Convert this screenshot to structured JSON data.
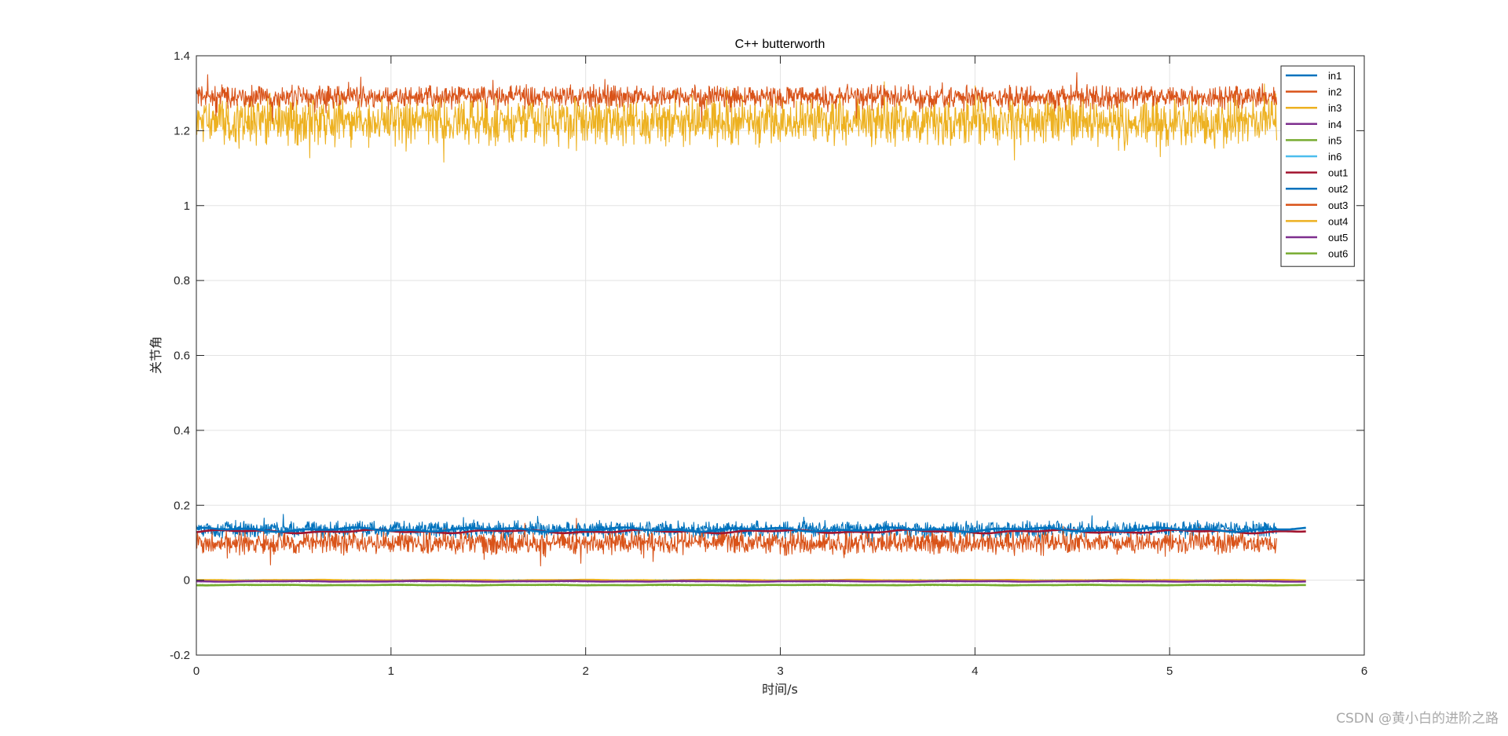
{
  "watermark": "CSDN @黄小白的进阶之路",
  "chart_data": {
    "type": "line",
    "title": "C++ butterworth",
    "xlabel": "时间/s",
    "ylabel": "关节角",
    "xlim": [
      0,
      6
    ],
    "ylim": [
      -0.2,
      1.4
    ],
    "xticks": [
      0,
      1,
      2,
      3,
      4,
      5,
      6
    ],
    "yticks": [
      -0.2,
      0,
      0.2,
      0.4,
      0.6,
      0.8,
      1,
      1.2,
      1.4
    ],
    "xtick_labels": [
      "0",
      "1",
      "2",
      "3",
      "4",
      "5",
      "6"
    ],
    "ytick_labels": [
      "-0.2",
      "0",
      "0.2",
      "0.4",
      "0.6",
      "0.8",
      "1",
      "1.2",
      "1.4"
    ],
    "grid": true,
    "legend_position": "top-right",
    "series": [
      {
        "name": "in1",
        "color": "#0072BD",
        "x_start": 0,
        "x_end": 5.55,
        "mean": 0.135,
        "noise_amp": 0.025,
        "kind": "noisy"
      },
      {
        "name": "in2",
        "color": "#D95319",
        "x_start": 0,
        "x_end": 5.55,
        "mean": 1.29,
        "noise_amp": 0.035,
        "kind": "noisy"
      },
      {
        "name": "in3",
        "color": "#EDB120",
        "x_start": 0,
        "x_end": 5.55,
        "mean": 1.225,
        "noise_amp": 0.075,
        "kind": "noisy"
      },
      {
        "name": "in4",
        "color": "#7E2F8E",
        "x_start": 0,
        "x_end": 5.55,
        "mean": -0.003,
        "noise_amp": 0.001,
        "kind": "noisy"
      },
      {
        "name": "in5",
        "color": "#77AC30",
        "x_start": 0,
        "x_end": 5.55,
        "mean": -0.013,
        "noise_amp": 0.001,
        "kind": "noisy"
      },
      {
        "name": "in6",
        "color": "#4DBEEE",
        "x_start": 0,
        "x_end": 5.55,
        "mean": 0.0,
        "noise_amp": 0.001,
        "kind": "noisy"
      },
      {
        "name": "out1",
        "color": "#A2142F",
        "x_start": 0,
        "x_end": 5.7,
        "mean": 0.13,
        "noise_amp": 0.005,
        "kind": "smooth"
      },
      {
        "name": "out2",
        "color": "#0072BD",
        "x_start": 0,
        "x_end": 5.7,
        "mean": 0.135,
        "noise_amp": 0.006,
        "kind": "smooth"
      },
      {
        "name": "out3",
        "color": "#D95319",
        "x_start": 0,
        "x_end": 5.55,
        "mean": 0.1,
        "noise_amp": 0.035,
        "kind": "noisy"
      },
      {
        "name": "out4",
        "color": "#EDB120",
        "x_start": 0,
        "x_end": 5.7,
        "mean": 0.0,
        "noise_amp": 0.001,
        "kind": "smooth"
      },
      {
        "name": "out5",
        "color": "#7E2F8E",
        "x_start": 0,
        "x_end": 5.7,
        "mean": -0.003,
        "noise_amp": 0.001,
        "kind": "smooth"
      },
      {
        "name": "out6",
        "color": "#77AC30",
        "x_start": 0,
        "x_end": 5.7,
        "mean": -0.013,
        "noise_amp": 0.001,
        "kind": "smooth"
      }
    ]
  }
}
